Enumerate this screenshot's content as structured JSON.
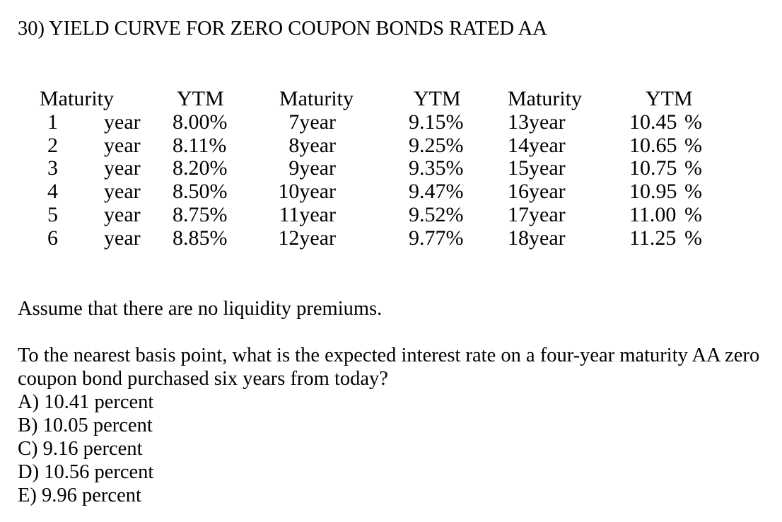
{
  "title": "30) YIELD CURVE FOR ZERO COUPON BONDS RATED AA",
  "table": {
    "headers": [
      "Maturity",
      "YTM",
      "Maturity",
      "YTM",
      "Maturity",
      "YTM"
    ],
    "rows": [
      {
        "maturity_1": "1",
        "unit_1": "year",
        "ytm_1": "8.00%",
        "maturity_2": "7year",
        "ytm_2": "9.15%",
        "maturity_3": "13year",
        "ytm_3_value": "10.45",
        "ytm_3_unit": "%"
      },
      {
        "maturity_1": "2",
        "unit_1": "year",
        "ytm_1": "8.11%",
        "maturity_2": "8year",
        "ytm_2": "9.25%",
        "maturity_3": "14year",
        "ytm_3_value": "10.65",
        "ytm_3_unit": "%"
      },
      {
        "maturity_1": "3",
        "unit_1": "year",
        "ytm_1": "8.20%",
        "maturity_2": "9year",
        "ytm_2": "9.35%",
        "maturity_3": "15year",
        "ytm_3_value": "10.75",
        "ytm_3_unit": "%"
      },
      {
        "maturity_1": "4",
        "unit_1": "year",
        "ytm_1": "8.50%",
        "maturity_2": "10year",
        "ytm_2": "9.47%",
        "maturity_3": "16year",
        "ytm_3_value": "10.95",
        "ytm_3_unit": "%"
      },
      {
        "maturity_1": "5",
        "unit_1": "year",
        "ytm_1": "8.75%",
        "maturity_2": "11year",
        "ytm_2": "9.52%",
        "maturity_3": "17year",
        "ytm_3_value": "11.00",
        "ytm_3_unit": "%"
      },
      {
        "maturity_1": "6",
        "unit_1": "year",
        "ytm_1": "8.85%",
        "maturity_2": "12year",
        "ytm_2": "9.77%",
        "maturity_3": "18year",
        "ytm_3_value": "11.25",
        "ytm_3_unit": "%"
      }
    ]
  },
  "assumption": "Assume that there are no liquidity premiums.",
  "question": "To the nearest basis point, what is the expected interest rate on a four-year maturity AA zero coupon bond purchased six years from today?",
  "options": [
    "A) 10.41 percent",
    "B) 10.05 percent",
    "C) 9.16 percent",
    "D) 10.56 percent",
    "E) 9.96 percent"
  ]
}
